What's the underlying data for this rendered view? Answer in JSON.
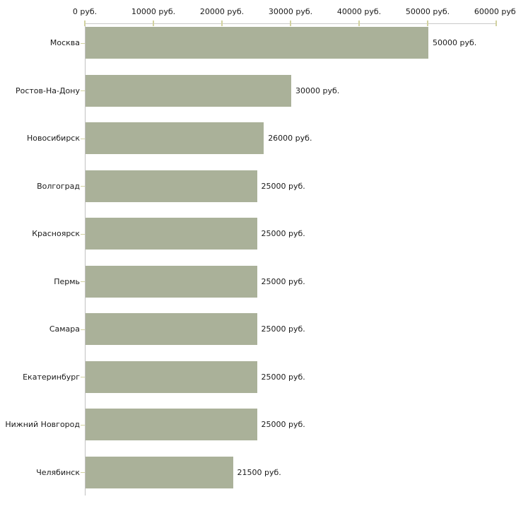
{
  "chart_data": {
    "type": "bar",
    "orientation": "horizontal",
    "title": "",
    "categories": [
      "Москва",
      "Ростов-На-Дону",
      "Новосибирск",
      "Волгоград",
      "Красноярск",
      "Пермь",
      "Самара",
      "Екатеринбург",
      "Нижний Новгород",
      "Челябинск"
    ],
    "values": [
      50000,
      30000,
      26000,
      25000,
      25000,
      25000,
      25000,
      25000,
      25000,
      21500
    ],
    "value_labels": [
      "50000 руб.",
      "30000 руб.",
      "26000 руб.",
      "25000 руб.",
      "25000 руб.",
      "25000 руб.",
      "25000 руб.",
      "25000 руб.",
      "25000 руб.",
      "21500 руб."
    ],
    "x_axis": {
      "position": "top",
      "range": [
        0,
        60000
      ],
      "ticks": [
        0,
        10000,
        20000,
        30000,
        40000,
        50000,
        60000
      ],
      "tick_labels": [
        "0 руб.",
        "10000 руб.",
        "20000 руб.",
        "30000 руб.",
        "40000 руб.",
        "50000 руб.",
        "60000 руб."
      ]
    },
    "unit": "руб.",
    "grid": "off",
    "legend": "none",
    "colors": {
      "bar": "#aab199",
      "axis_line": "#c9c9c9",
      "y_axis_line": "#c2c2c2",
      "tick_mark": "#d2d2a0",
      "label_text": "#1a1a1a"
    }
  }
}
